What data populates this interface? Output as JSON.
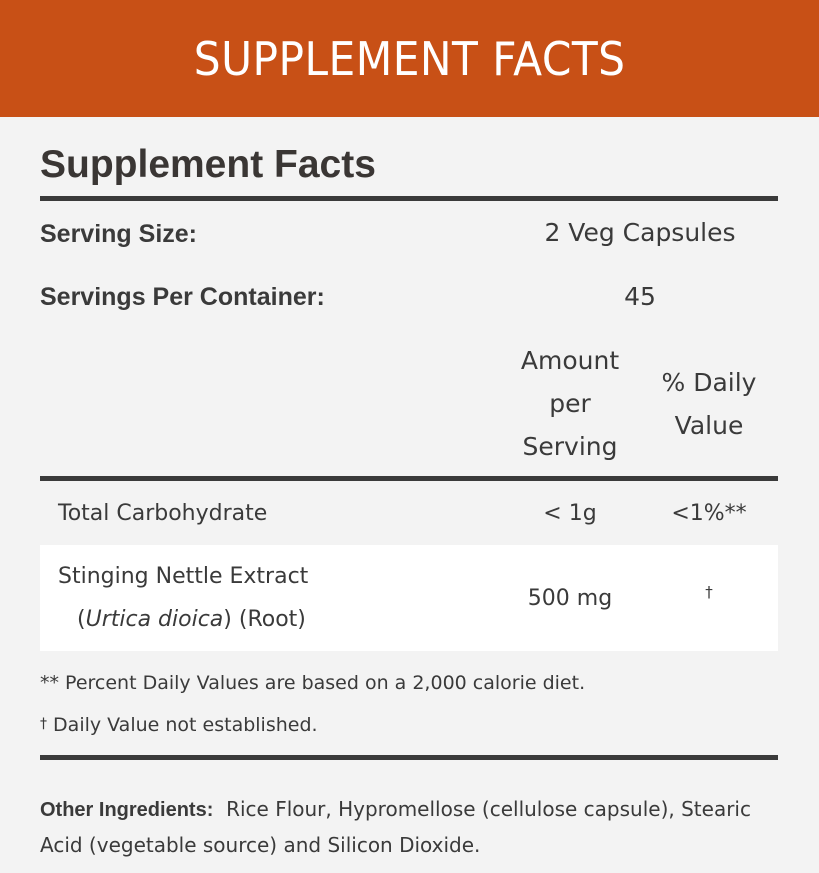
{
  "banner": {
    "title": "SUPPLEMENT FACTS",
    "background_color": "#c85016"
  },
  "facts": {
    "title": "Supplement Facts",
    "serving_size": {
      "label": "Serving Size:",
      "value": "2 Veg Capsules"
    },
    "servings_per_container": {
      "label": "Servings Per Container:",
      "value": "45"
    },
    "columns": {
      "amount": "Amount per Serving",
      "amount_lines": [
        "Amount",
        "per",
        "Serving"
      ],
      "daily_value": "% Daily Value",
      "daily_value_lines": [
        "% Daily",
        "Value"
      ]
    },
    "nutrients": [
      {
        "name": "Total Carbohydrate",
        "sub": "",
        "amount": "< 1g",
        "daily_value": "<1%**"
      },
      {
        "name": "Stinging Nettle Extract",
        "sub_open": "(",
        "sub_italic": "Urtica dioica",
        "sub_close": ") (Root)",
        "amount": "500 mg",
        "daily_value": "†"
      }
    ],
    "footnotes": [
      "** Percent Daily Values are based on a 2,000 calorie diet.",
      {
        "mark": "†",
        "text": " Daily Value not established."
      }
    ],
    "other_ingredients": {
      "label": "Other Ingredients:",
      "text": "Rice Flour, Hypromellose (cellulose capsule), Stearic Acid (vegetable source) and Silicon Dioxide."
    }
  }
}
